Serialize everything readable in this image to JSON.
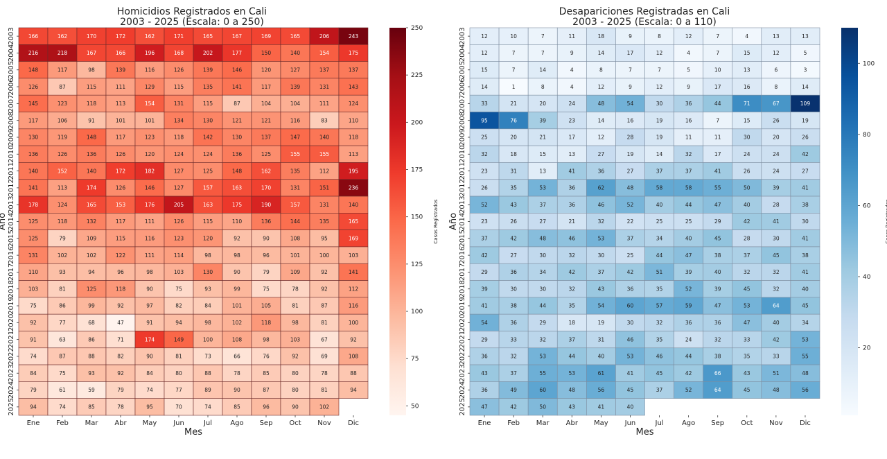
{
  "chart_data": [
    {
      "type": "heatmap",
      "title": "Homicidios Registrados en Cali",
      "subtitle": "2003 - 2025 (Escala: 0 a 250)",
      "xlabel": "Mes",
      "ylabel": "Año",
      "colorbar_label": "Casos Registrados",
      "colorbar_ticks": [
        50,
        75,
        100,
        125,
        150,
        175,
        200,
        225,
        250
      ],
      "vmin": 45,
      "vmax": 250,
      "scheme": "reds",
      "months": [
        "Ene",
        "Feb",
        "Mar",
        "Abr",
        "May",
        "Jun",
        "Jul",
        "Ago",
        "Sep",
        "Oct",
        "Nov",
        "Dic"
      ],
      "years": [
        "2003",
        "2004",
        "2005",
        "2006",
        "2007",
        "2008",
        "2009",
        "2010",
        "2011",
        "2012",
        "2013",
        "2014",
        "2015",
        "2016",
        "2017",
        "2018",
        "2019",
        "2020",
        "2021",
        "2022",
        "2023",
        "2024",
        "2025"
      ],
      "values": [
        [
          166,
          162,
          170,
          172,
          162,
          171,
          165,
          167,
          169,
          165,
          206,
          243
        ],
        [
          216,
          218,
          167,
          166,
          196,
          168,
          202,
          177,
          150,
          140,
          154,
          175
        ],
        [
          148,
          117,
          98,
          139,
          116,
          126,
          139,
          146,
          120,
          127,
          137,
          137
        ],
        [
          126,
          87,
          115,
          111,
          129,
          115,
          135,
          141,
          117,
          139,
          131,
          143
        ],
        [
          145,
          123,
          118,
          113,
          154,
          131,
          115,
          87,
          104,
          104,
          111,
          124
        ],
        [
          117,
          106,
          91,
          101,
          101,
          134,
          130,
          121,
          121,
          116,
          83,
          110
        ],
        [
          130,
          119,
          148,
          117,
          123,
          118,
          142,
          130,
          137,
          147,
          140,
          118
        ],
        [
          136,
          126,
          136,
          126,
          120,
          124,
          124,
          136,
          125,
          155,
          155,
          113
        ],
        [
          140,
          152,
          140,
          172,
          182,
          127,
          125,
          148,
          162,
          135,
          112,
          195
        ],
        [
          141,
          113,
          174,
          126,
          146,
          127,
          157,
          163,
          170,
          131,
          151,
          236
        ],
        [
          178,
          124,
          165,
          153,
          176,
          205,
          163,
          175,
          190,
          157,
          131,
          140
        ],
        [
          125,
          118,
          132,
          117,
          111,
          126,
          115,
          110,
          136,
          144,
          135,
          165
        ],
        [
          125,
          79,
          109,
          115,
          116,
          123,
          120,
          92,
          90,
          108,
          95,
          169
        ],
        [
          131,
          102,
          102,
          122,
          111,
          114,
          98,
          98,
          96,
          101,
          100,
          103
        ],
        [
          110,
          93,
          94,
          96,
          98,
          103,
          130,
          90,
          79,
          109,
          92,
          141
        ],
        [
          103,
          81,
          125,
          118,
          90,
          75,
          93,
          99,
          75,
          78,
          92,
          112
        ],
        [
          75,
          86,
          99,
          92,
          97,
          82,
          84,
          101,
          105,
          81,
          87,
          116
        ],
        [
          92,
          77,
          68,
          47,
          91,
          94,
          98,
          102,
          118,
          98,
          81,
          100
        ],
        [
          91,
          63,
          86,
          71,
          174,
          149,
          100,
          108,
          98,
          103,
          67,
          92
        ],
        [
          74,
          87,
          88,
          82,
          90,
          81,
          73,
          66,
          76,
          92,
          69,
          108
        ],
        [
          84,
          75,
          93,
          92,
          84,
          80,
          88,
          78,
          85,
          80,
          78,
          88
        ],
        [
          79,
          61,
          59,
          79,
          74,
          77,
          89,
          90,
          87,
          80,
          81,
          94
        ],
        [
          94,
          74,
          85,
          78,
          95,
          70,
          74,
          85,
          96,
          90,
          102,
          null
        ]
      ]
    },
    {
      "type": "heatmap",
      "title": "Desapariciones Registradas en Cali",
      "subtitle": "2003 - 2025 (Escala: 0 a 110)",
      "xlabel": "Mes",
      "ylabel": "Año",
      "colorbar_label": "Casos Registrados",
      "colorbar_ticks": [
        20,
        40,
        60,
        80,
        100
      ],
      "vmin": 1,
      "vmax": 110,
      "scheme": "blues",
      "months": [
        "Ene",
        "Feb",
        "Mar",
        "Abr",
        "May",
        "Jun",
        "Jul",
        "Ago",
        "Sep",
        "Oct",
        "Nov",
        "Dic"
      ],
      "years": [
        "2003",
        "2004",
        "2005",
        "2006",
        "2007",
        "2008",
        "2009",
        "2010",
        "2011",
        "2012",
        "2013",
        "2014",
        "2015",
        "2016",
        "2017",
        "2018",
        "2019",
        "2020",
        "2021",
        "2022",
        "2023",
        "2024",
        "2025"
      ],
      "values": [
        [
          12,
          10,
          7,
          11,
          18,
          9,
          8,
          12,
          7,
          4,
          13,
          13
        ],
        [
          12,
          7,
          7,
          9,
          14,
          17,
          12,
          4,
          7,
          15,
          12,
          5
        ],
        [
          15,
          7,
          14,
          4,
          8,
          7,
          7,
          5,
          10,
          13,
          6,
          3
        ],
        [
          14,
          1,
          8,
          4,
          12,
          9,
          12,
          9,
          17,
          16,
          8,
          14
        ],
        [
          33,
          21,
          20,
          24,
          48,
          54,
          30,
          36,
          44,
          71,
          67,
          109
        ],
        [
          95,
          76,
          39,
          23,
          14,
          16,
          19,
          16,
          7,
          15,
          26,
          19
        ],
        [
          25,
          20,
          21,
          17,
          12,
          28,
          19,
          11,
          11,
          30,
          20,
          26
        ],
        [
          32,
          18,
          15,
          13,
          27,
          19,
          14,
          32,
          17,
          24,
          24,
          42
        ],
        [
          23,
          31,
          13,
          41,
          36,
          27,
          37,
          37,
          41,
          26,
          24,
          27
        ],
        [
          26,
          35,
          53,
          36,
          62,
          48,
          58,
          58,
          55,
          50,
          39,
          41
        ],
        [
          52,
          43,
          37,
          36,
          46,
          52,
          40,
          44,
          47,
          40,
          28,
          38
        ],
        [
          23,
          26,
          27,
          21,
          32,
          22,
          25,
          25,
          29,
          42,
          41,
          30
        ],
        [
          37,
          42,
          48,
          46,
          53,
          37,
          34,
          40,
          45,
          28,
          30,
          41
        ],
        [
          42,
          27,
          30,
          32,
          30,
          25,
          44,
          47,
          38,
          37,
          45,
          38
        ],
        [
          29,
          36,
          34,
          42,
          37,
          42,
          51,
          39,
          40,
          32,
          32,
          41
        ],
        [
          39,
          30,
          30,
          32,
          43,
          36,
          35,
          52,
          39,
          45,
          32,
          40
        ],
        [
          41,
          38,
          44,
          35,
          54,
          60,
          57,
          59,
          47,
          53,
          64,
          45
        ],
        [
          54,
          36,
          29,
          18,
          19,
          30,
          32,
          36,
          36,
          47,
          40,
          34
        ],
        [
          29,
          33,
          32,
          37,
          31,
          46,
          35,
          24,
          32,
          33,
          42,
          53
        ],
        [
          36,
          32,
          53,
          44,
          40,
          53,
          46,
          44,
          38,
          35,
          33,
          55
        ],
        [
          43,
          37,
          55,
          53,
          61,
          41,
          45,
          42,
          66,
          43,
          51,
          48
        ],
        [
          36,
          49,
          60,
          48,
          56,
          45,
          37,
          52,
          64,
          45,
          48,
          56
        ],
        [
          47,
          42,
          50,
          43,
          41,
          40,
          null,
          null,
          null,
          null,
          null,
          null
        ]
      ]
    }
  ]
}
